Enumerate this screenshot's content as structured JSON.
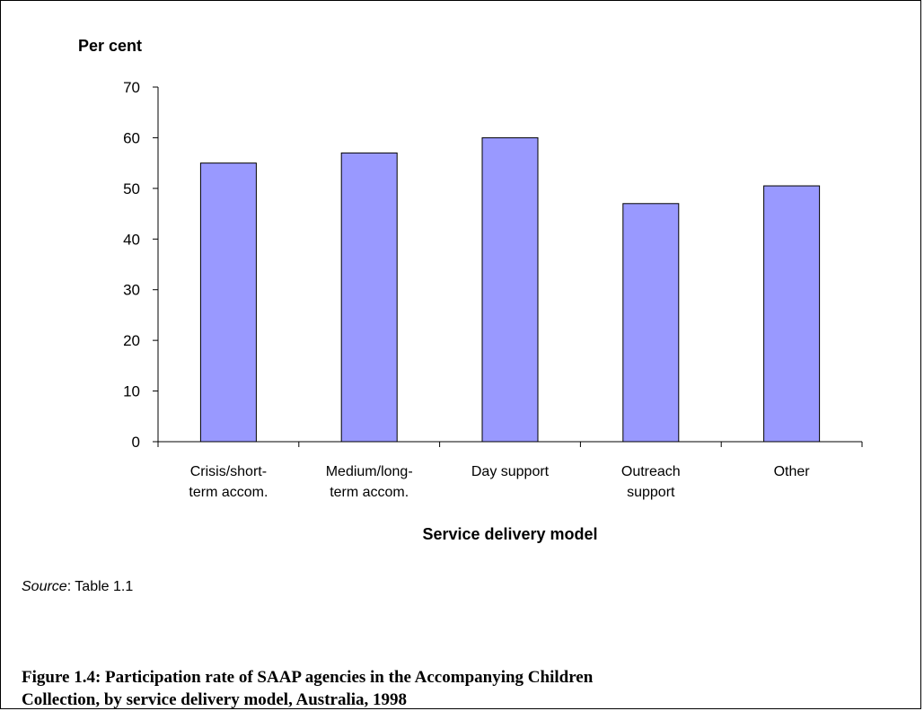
{
  "chart_data": {
    "type": "bar",
    "ylabel": "Per cent",
    "xlabel": "Service delivery model",
    "categories": [
      [
        "Crisis/short-",
        "term accom."
      ],
      [
        "Medium/long-",
        "term accom."
      ],
      [
        "Day support"
      ],
      [
        "Outreach",
        "support"
      ],
      [
        "Other"
      ]
    ],
    "values": [
      55,
      57,
      60,
      47,
      50.5
    ],
    "ylim": [
      0,
      70
    ],
    "yticks": [
      0,
      10,
      20,
      30,
      40,
      50,
      60,
      70
    ],
    "grid": false,
    "legend": "none",
    "bar_color": "#9999ff",
    "bar_edge_color": "#000000"
  },
  "source": {
    "label": "Source",
    "text": ": Table 1.1"
  },
  "caption": {
    "line1": "Figure 1.4: Participation rate of SAAP agencies in the Accompanying Children",
    "line2": "Collection, by service delivery model, Australia, 1998"
  }
}
